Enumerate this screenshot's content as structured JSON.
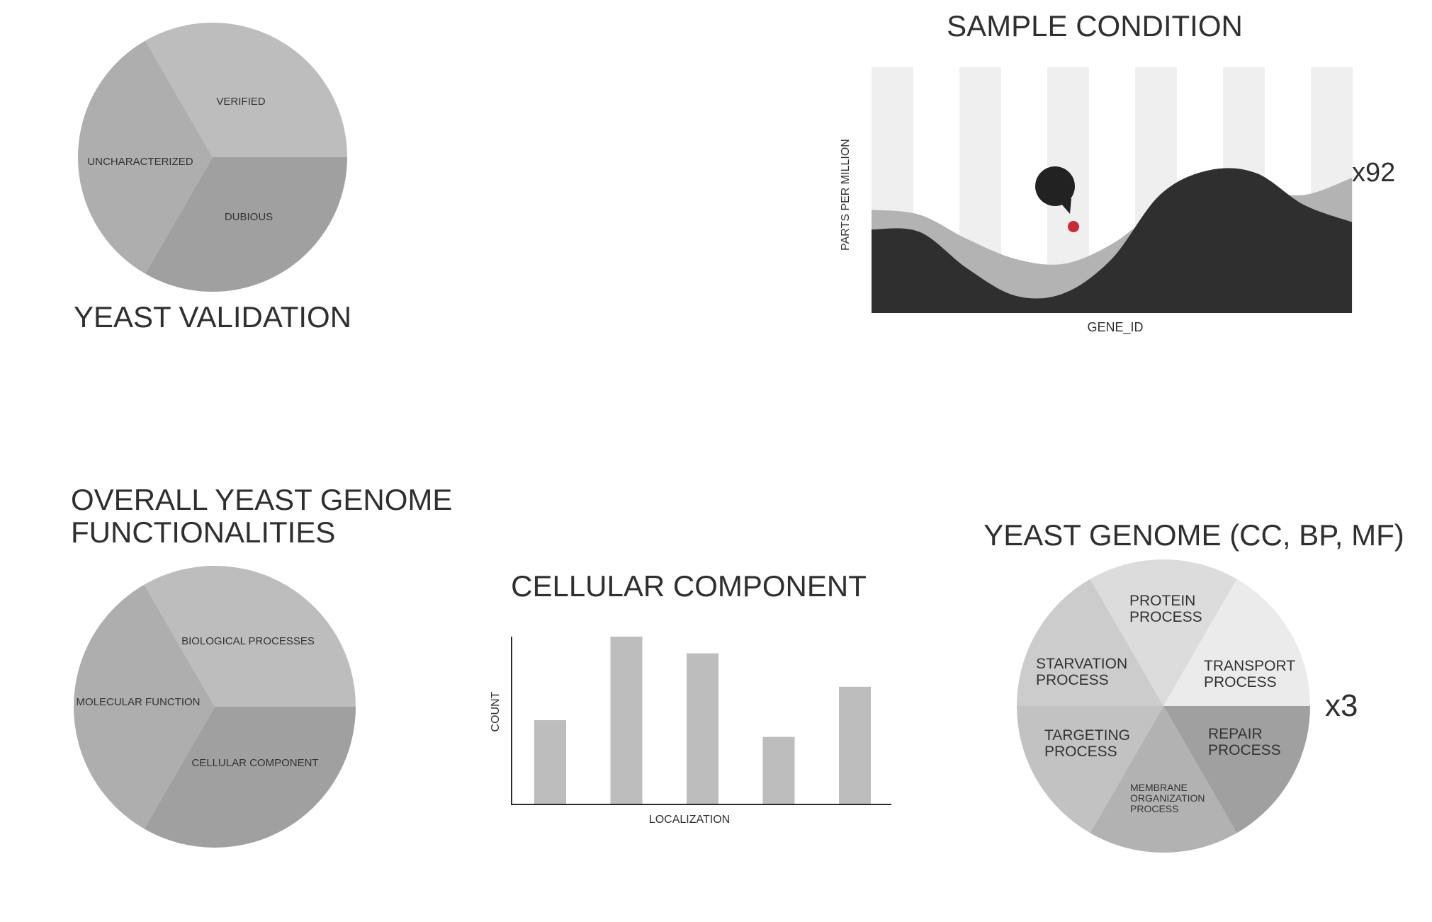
{
  "pie_validation": {
    "title": "YEAST VALIDATION",
    "slices": [
      {
        "label": "VERIFIED",
        "share": 0.3333,
        "color": "#bdbdbd"
      },
      {
        "label": "DUBIOUS",
        "share": 0.3333,
        "color": "#a0a0a0"
      },
      {
        "label": "UNCHARACTERIZED",
        "share": 0.3333,
        "color": "#aeaeae"
      }
    ]
  },
  "area_sample": {
    "title": "SAMPLE CONDITION",
    "ylabel": "PARTS PER MILLION",
    "xlabel": "GENE_ID",
    "multiplier": "x92",
    "colors": {
      "front": "#2f2f2f",
      "back": "#b3b3b3",
      "stripe": "#efefef",
      "marker": "#cc2a36",
      "callout": "#222222"
    }
  },
  "pie_functionalities": {
    "title_line1": "OVERALL YEAST GENOME",
    "title_line2": "FUNCTIONALITIES",
    "slices": [
      {
        "label": "BIOLOGICAL PROCESSES",
        "share": 0.3333,
        "color": "#bdbdbd"
      },
      {
        "label": "CELLULAR COMPONENT",
        "share": 0.3333,
        "color": "#a0a0a0"
      },
      {
        "label": "MOLECULAR FUNCTION",
        "share": 0.3333,
        "color": "#aeaeae"
      }
    ]
  },
  "bar_cellular": {
    "title": "CELLULAR COMPONENT",
    "ylabel": "COUNT",
    "xlabel": "LOCALIZATION",
    "color": "#bdbdbd"
  },
  "pie_ccbpmf": {
    "title": "YEAST GENOME (CC, BP, MF)",
    "multiplier": "x3",
    "slices": [
      {
        "label_lines": [
          "PROTEIN",
          "PROCESS"
        ],
        "share": 0.1667,
        "color": "#dcdcdc"
      },
      {
        "label_lines": [
          "TRANSPORT",
          "PROCESS"
        ],
        "share": 0.1667,
        "color": "#ebebeb"
      },
      {
        "label_lines": [
          "REPAIR",
          "PROCESS"
        ],
        "share": 0.1667,
        "color": "#a0a0a0"
      },
      {
        "label_lines": [
          "MEMBRANE",
          "ORGANIZATION",
          "PROCESS"
        ],
        "share": 0.1667,
        "color": "#b2b2b2"
      },
      {
        "label_lines": [
          "TARGETING",
          "PROCESS"
        ],
        "share": 0.1667,
        "color": "#c2c2c2"
      },
      {
        "label_lines": [
          "STARVATION",
          "PROCESS"
        ],
        "share": 0.1667,
        "color": "#cccccc"
      }
    ]
  },
  "chart_data": [
    {
      "type": "pie",
      "title": "YEAST VALIDATION",
      "labels": [
        "VERIFIED",
        "DUBIOUS",
        "UNCHARACTERIZED"
      ],
      "values": [
        33.3,
        33.3,
        33.3
      ]
    },
    {
      "type": "area",
      "title": "SAMPLE CONDITION",
      "xlabel": "GENE_ID",
      "ylabel": "PARTS PER MILLION",
      "x": [
        0,
        1,
        2,
        3,
        4,
        5,
        6,
        7,
        8,
        9,
        10
      ],
      "series": [
        {
          "values": [
            0.42,
            0.4,
            0.3,
            0.22,
            0.2,
            0.28,
            0.42,
            0.49,
            0.5,
            0.48,
            0.55
          ]
        },
        {
          "values": [
            0.34,
            0.33,
            0.18,
            0.07,
            0.08,
            0.22,
            0.48,
            0.58,
            0.57,
            0.44,
            0.37
          ]
        }
      ],
      "ylim": [
        0,
        1
      ],
      "annotations": [
        "x92"
      ]
    },
    {
      "type": "pie",
      "title": "OVERALL YEAST GENOME FUNCTIONALITIES",
      "labels": [
        "BIOLOGICAL PROCESSES",
        "CELLULAR COMPONENT",
        "MOLECULAR FUNCTION"
      ],
      "values": [
        33.3,
        33.3,
        33.3
      ]
    },
    {
      "type": "bar",
      "title": "CELLULAR COMPONENT",
      "xlabel": "LOCALIZATION",
      "ylabel": "COUNT",
      "categories": [
        "",
        "",
        "",
        "",
        ""
      ],
      "values": [
        0.5,
        1.0,
        0.9,
        0.4,
        0.7
      ],
      "ylim": [
        0,
        1
      ]
    },
    {
      "type": "pie",
      "title": "YEAST GENOME (CC, BP, MF)",
      "labels": [
        "PROTEIN PROCESS",
        "TRANSPORT PROCESS",
        "REPAIR PROCESS",
        "MEMBRANE ORGANIZATION PROCESS",
        "TARGETING PROCESS",
        "STARVATION PROCESS"
      ],
      "values": [
        16.7,
        16.7,
        16.7,
        16.7,
        16.7,
        16.7
      ],
      "annotations": [
        "x3"
      ]
    }
  ]
}
